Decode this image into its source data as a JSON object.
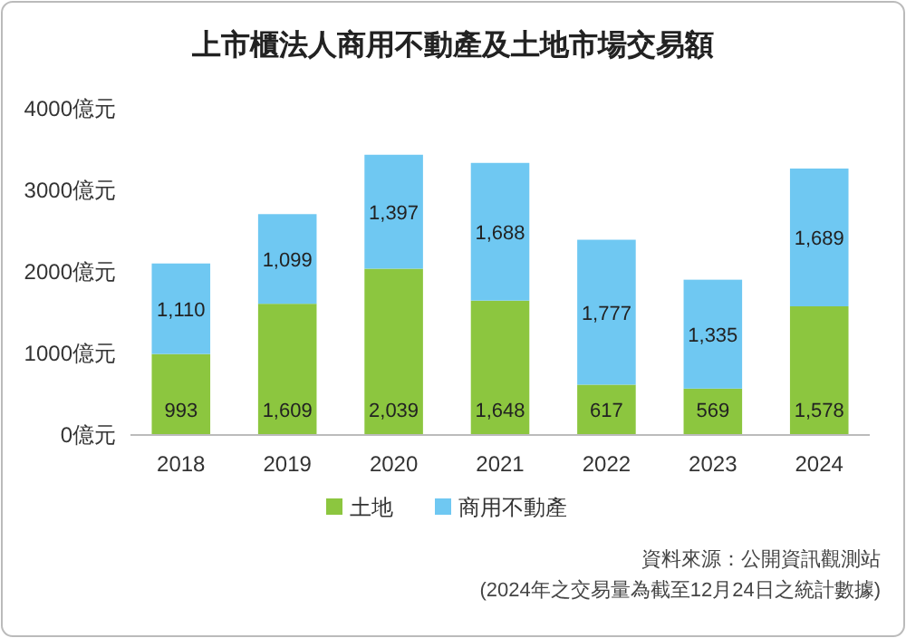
{
  "chart_data": {
    "type": "bar",
    "title": "上市櫃法人商用不動產及土地市場交易額",
    "categories": [
      "2018",
      "2019",
      "2020",
      "2021",
      "2022",
      "2023",
      "2024"
    ],
    "stacked": true,
    "ylim": [
      0,
      4000
    ],
    "yticks": [
      {
        "value": 0,
        "label": "0億元"
      },
      {
        "value": 1000,
        "label": "1000億元"
      },
      {
        "value": 2000,
        "label": "2000億元"
      },
      {
        "value": 3000,
        "label": "3000億元"
      },
      {
        "value": 4000,
        "label": "4000億元"
      }
    ],
    "legend": "bottom",
    "grid": false,
    "series": [
      {
        "name": "土地",
        "color": "#8cc63f",
        "values": [
          993,
          1609,
          2039,
          1648,
          617,
          569,
          1578
        ],
        "value_labels": [
          "993",
          "1,609",
          "2,039",
          "1,648",
          "617",
          "569",
          "1,578"
        ]
      },
      {
        "name": "商用不動產",
        "color": "#6fc8f2",
        "values": [
          1110,
          1099,
          1397,
          1688,
          1777,
          1335,
          1689
        ],
        "value_labels": [
          "1,110",
          "1,099",
          "1,397",
          "1,688",
          "1,777",
          "1,335",
          "1,689"
        ]
      }
    ],
    "annotations": [
      "資料來源：公開資訊觀測站",
      "(2024年之交易量為截至12月24日之統計數據)"
    ]
  }
}
